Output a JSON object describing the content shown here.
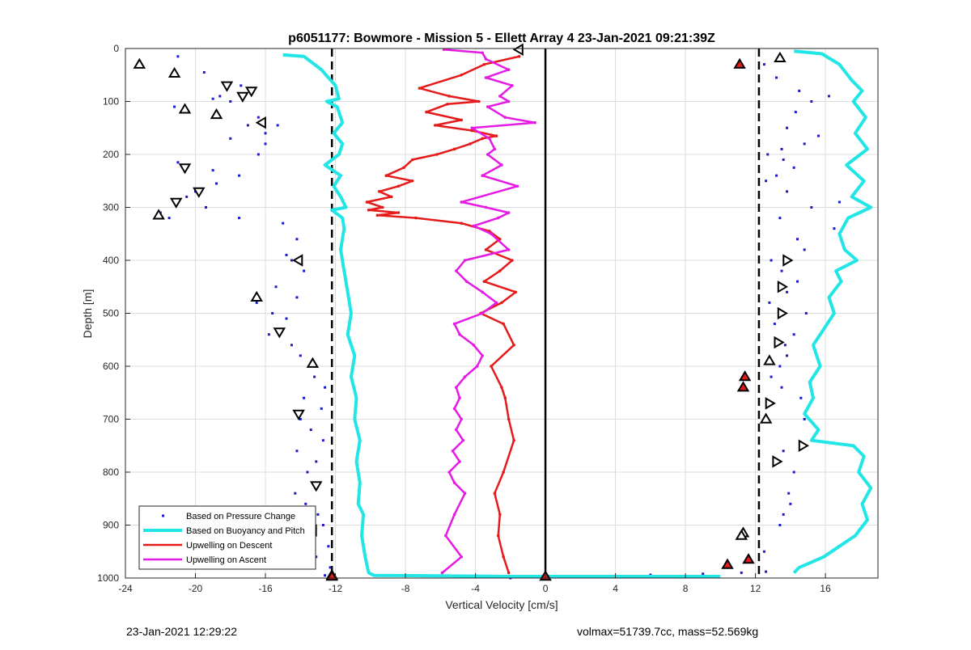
{
  "chart_data": {
    "type": "line",
    "title": "p6051177: Bowmore - Mission 5 - Ellett Array 4 23-Jan-2021 09:21:39Z",
    "xlabel": "Vertical Velocity [cm/s]",
    "ylabel": "Depth [m]",
    "xlim": [
      -24,
      19
    ],
    "ylim": [
      0,
      1000
    ],
    "y_reversed": true,
    "grid": true,
    "xticks": [
      -24,
      -20,
      -16,
      -12,
      -8,
      -4,
      0,
      4,
      8,
      12,
      16
    ],
    "yticks": [
      0,
      100,
      200,
      300,
      400,
      500,
      600,
      700,
      800,
      900,
      1000
    ],
    "legend_position": "bottom-left",
    "reference_lines": [
      {
        "x": -12.2,
        "style": "dashed",
        "color": "#000000"
      },
      {
        "x": 12.2,
        "style": "dashed",
        "color": "#000000"
      },
      {
        "x": 0,
        "style": "solid",
        "color": "#000000"
      }
    ],
    "series": [
      {
        "name": "Based on Pressure Change",
        "style": "dots",
        "color": "#1a1acc",
        "branches": [
          {
            "x": [
              -23.2,
              -21,
              -19.5,
              -18.6,
              -21.2,
              -20.4,
              -19,
              -17.4,
              -18,
              -16.4,
              -17,
              -16,
              -18,
              -16,
              -15.3,
              -16.4,
              -19,
              -21,
              -17.5,
              -20,
              -18.8,
              -20.5,
              -19.4,
              -21.2,
              -22,
              -21.5,
              -17.5
            ],
            "y": [
              30,
              15,
              45,
              90,
              110,
              120,
              95,
              70,
              100,
              130,
              145,
              160,
              170,
              180,
              145,
              200,
              230,
              215,
              240,
              270,
              255,
              280,
              300,
              290,
              310,
              320,
              320
            ]
          },
          {
            "x": [
              -15,
              -14.2,
              -14.8,
              -13.8,
              -14.5,
              -15.4,
              -14.2,
              -16.5,
              -15.6,
              -14.8,
              -15.8,
              -14.5,
              -14,
              -13.5,
              -13.2,
              -12.6,
              -13.8,
              -12.8,
              -14,
              -13.4,
              -12.7,
              -14.2,
              -13.1,
              -13.6,
              -12.9,
              -14.3,
              -13.7,
              -13,
              -12.7,
              -13.4,
              -12.4,
              -13.1,
              -12.3,
              -12.6
            ],
            "y": [
              330,
              360,
              390,
              420,
              400,
              450,
              470,
              480,
              500,
              510,
              540,
              560,
              580,
              600,
              620,
              640,
              660,
              680,
              700,
              720,
              740,
              760,
              780,
              800,
              820,
              840,
              860,
              880,
              900,
              920,
              940,
              960,
              980,
              995
            ]
          },
          {
            "x": [
              12.5,
              13.2,
              14.5,
              16.2,
              15.2,
              14.3,
              13.8,
              15.6,
              14.8,
              13.5,
              12.7,
              13.6,
              14.2,
              13.2,
              12.6,
              13.8,
              16.8,
              15.2,
              13.4,
              16.5,
              14.4,
              14.8,
              12.9,
              13.5,
              14.4,
              13.8,
              12.8,
              14.9,
              13.1,
              14.2,
              13.7,
              13.8,
              13.4,
              12.9,
              13.5,
              14.6,
              14.8,
              13.6,
              14.2,
              13.9,
              14,
              13.6,
              13.4,
              12.5
            ],
            "y": [
              30,
              55,
              80,
              90,
              100,
              120,
              150,
              165,
              180,
              190,
              200,
              210,
              225,
              240,
              250,
              270,
              290,
              300,
              320,
              340,
              360,
              380,
              400,
              420,
              440,
              460,
              480,
              500,
              520,
              540,
              560,
              580,
              600,
              620,
              640,
              660,
              700,
              760,
              800,
              840,
              860,
              880,
              900,
              950
            ]
          },
          {
            "x": [
              -2,
              1.5,
              4,
              6,
              9,
              11.2,
              12.6
            ],
            "y": [
              1000,
              998,
              996,
              994,
              992,
              990,
              988
            ]
          }
        ]
      },
      {
        "name": "Based on Buoyancy and Pitch",
        "style": "line",
        "color": "#22e5e5",
        "branches": [
          {
            "x": [
              -15,
              -13.8,
              -12.8,
              -12,
              -11.8,
              -12.5,
              -11.9,
              -11.6,
              -12.1,
              -11.6,
              -11.8,
              -12.6,
              -11.7,
              -12.1,
              -11.7,
              -11.4,
              -12.2,
              -11.6,
              -11.5,
              -11.7,
              -11.5,
              -11.3,
              -11.1,
              -11.3,
              -10.9,
              -11.1,
              -10.8,
              -10.9,
              -10.6,
              -10.8,
              -10.6,
              -10.7,
              -10.4,
              -10.5,
              -10.3,
              -10.1,
              -9.8,
              -2,
              4,
              10
            ],
            "y": [
              12,
              15,
              40,
              70,
              95,
              100,
              110,
              140,
              160,
              180,
              200,
              220,
              240,
              260,
              280,
              300,
              305,
              320,
              340,
              380,
              420,
              460,
              500,
              540,
              580,
              620,
              660,
              700,
              740,
              780,
              820,
              860,
              880,
              920,
              960,
              990,
              995,
              997,
              997,
              997
            ]
          },
          {
            "x": [
              14.2,
              15.8,
              16.8,
              17.5,
              18.1,
              17.6,
              18.3,
              17.7,
              18.4,
              17.2,
              18.2,
              17.5,
              18.6,
              17.3,
              16.8,
              17.1,
              17.8,
              16.6,
              16.9,
              16.2,
              16.5,
              15.9,
              15.3,
              15.7,
              15.1,
              15.3,
              14.8,
              15.6,
              15.2,
              17.6,
              18.2,
              17.9,
              18.6,
              18.1,
              18.4,
              17.7,
              16.8,
              15.9,
              15.2,
              14.5,
              14.2
            ],
            "y": [
              5,
              10,
              30,
              60,
              80,
              100,
              130,
              160,
              190,
              220,
              250,
              280,
              300,
              320,
              350,
              380,
              400,
              420,
              440,
              470,
              500,
              530,
              560,
              600,
              630,
              660,
              690,
              720,
              740,
              750,
              770,
              800,
              830,
              860,
              890,
              920,
              940,
              960,
              970,
              980,
              990
            ]
          }
        ]
      },
      {
        "name": "Upwelling on Descent",
        "style": "line-markers",
        "color": "#e51a1a",
        "x": [
          -1.5,
          -3.5,
          -4.8,
          -7.2,
          -5.5,
          -3.8,
          -5.6,
          -6.8,
          -4.8,
          -6.3,
          -4.2,
          -2.8,
          -3.6,
          -4.3,
          -5.2,
          -6.2,
          -7.6,
          -8.1,
          -9.1,
          -7.6,
          -8.4,
          -9.5,
          -8.8,
          -10.2,
          -9.3,
          -10.1,
          -8.4,
          -9.6,
          -7.4,
          -4.8,
          -3.2,
          -2.6,
          -3.4,
          -1.9,
          -2.6,
          -3.5,
          -1.7,
          -2.5,
          -3.7,
          -2.4,
          -1.8,
          -3.1,
          -2.5,
          -2.3,
          -2.1,
          -1.8,
          -2.4,
          -2.9,
          -2.6,
          -2.7,
          -2.4,
          -2.1
        ],
        "y": [
          15,
          30,
          50,
          75,
          90,
          100,
          105,
          120,
          135,
          145,
          155,
          165,
          170,
          180,
          190,
          200,
          210,
          225,
          240,
          250,
          260,
          270,
          280,
          290,
          300,
          305,
          310,
          315,
          320,
          330,
          345,
          360,
          380,
          400,
          420,
          440,
          460,
          480,
          500,
          520,
          560,
          600,
          640,
          660,
          700,
          740,
          800,
          840,
          880,
          920,
          960,
          990
        ]
      },
      {
        "name": "Upwelling on Ascent",
        "style": "line-markers",
        "color": "#e51ae5",
        "x": [
          -5.8,
          -3.6,
          -3.4,
          -2.1,
          -3.4,
          -1.9,
          -2.6,
          -2.1,
          -3.3,
          -2.3,
          -0.6,
          -4.2,
          -3.2,
          -2.9,
          -3.3,
          -2.5,
          -3.6,
          -1.6,
          -4.8,
          -3.4,
          -2.1,
          -2.7,
          -4.1,
          -3.1,
          -2.1,
          -4.6,
          -5.1,
          -4.5,
          -3.6,
          -2.8,
          -3.6,
          -5.2,
          -4.9,
          -4.1,
          -3.6,
          -3.9,
          -4.6,
          -5.1,
          -4.9,
          -5.2,
          -4.8,
          -5.1,
          -4.7,
          -5.3,
          -4.9,
          -5.5,
          -5.2,
          -4.6,
          -5.2,
          -5.7,
          -4.8,
          -5.9
        ],
        "y": [
          2,
          8,
          20,
          40,
          55,
          70,
          90,
          100,
          110,
          130,
          140,
          150,
          170,
          190,
          200,
          220,
          240,
          260,
          290,
          300,
          310,
          320,
          335,
          350,
          380,
          400,
          420,
          440,
          460,
          480,
          500,
          520,
          540,
          560,
          580,
          600,
          620,
          640,
          660,
          680,
          700,
          720,
          740,
          760,
          780,
          800,
          820,
          840,
          880,
          920,
          960,
          990
        ]
      }
    ],
    "markers": [
      {
        "shape": "triangle-up",
        "x": [
          -23.2,
          -21.2,
          -20.6,
          -18.8,
          -22.1,
          -16.5,
          -13.3,
          -12.2
        ],
        "y": [
          30,
          47,
          115,
          125,
          315,
          470,
          595,
          995
        ]
      },
      {
        "shape": "triangle-down",
        "x": [
          -18.2,
          -17.3,
          -16.8,
          -20.6,
          -19.8,
          -21.1,
          -14.1,
          -15.2,
          -13.1
        ],
        "y": [
          70,
          90,
          80,
          225,
          270,
          290,
          690,
          535,
          825
        ]
      },
      {
        "shape": "triangle-left",
        "x": [
          -16.2,
          -14.1,
          -13.3,
          -1.5
        ],
        "y": [
          140,
          400,
          910,
          2
        ]
      },
      {
        "shape": "triangle-up",
        "x": [
          13.4,
          11.3,
          12.8,
          12.6,
          11.2
        ],
        "y": [
          18,
          915,
          590,
          700,
          920
        ]
      },
      {
        "shape": "triangle-right",
        "x": [
          13.8,
          13.5,
          13.5,
          12.8,
          13.3,
          14.7,
          13.2
        ],
        "y": [
          400,
          450,
          500,
          670,
          555,
          750,
          780
        ]
      },
      {
        "shape": "triangle-up-red",
        "x": [
          11.1,
          11.4,
          11.3,
          10.4,
          11.6,
          0,
          -12.2
        ],
        "y": [
          30,
          620,
          640,
          975,
          965,
          997,
          997
        ]
      }
    ]
  },
  "footer": {
    "timestamp": "23-Jan-2021 12:29:22",
    "summary": "volmax=51739.7cc, mass=52.569kg"
  }
}
